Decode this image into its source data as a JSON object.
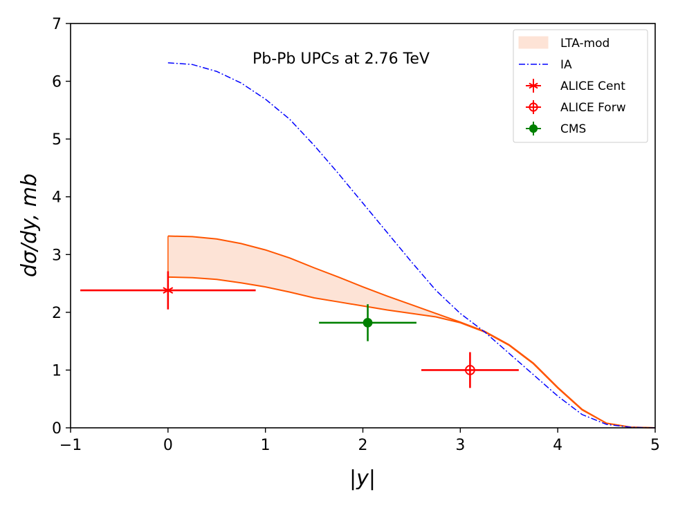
{
  "chart_data": {
    "type": "line",
    "title": "Pb-Pb UPCs at 2.76 TeV",
    "xlabel": "|y|",
    "ylabel": "dσ/dy, mb",
    "xlim": [
      -1,
      5
    ],
    "ylim": [
      0,
      7
    ],
    "xticks": [
      -1,
      0,
      1,
      2,
      3,
      4,
      5
    ],
    "yticks": [
      0,
      1,
      2,
      3,
      4,
      5,
      6,
      7
    ],
    "xtick_labels": [
      "−1",
      "0",
      "1",
      "2",
      "3",
      "4",
      "5"
    ],
    "ytick_labels": [
      "0",
      "1",
      "2",
      "3",
      "4",
      "5",
      "6",
      "7"
    ],
    "grid": false,
    "legend_position": "top-right",
    "band": {
      "name": "LTA-mod",
      "color": "#fde3d6",
      "edge_color": "#ff5500",
      "x": [
        0,
        0.25,
        0.5,
        0.75,
        1.0,
        1.25,
        1.5,
        1.75,
        2.0,
        2.25,
        2.5,
        2.75,
        3.0,
        3.25,
        3.5,
        3.75,
        4.0,
        4.25,
        4.5,
        4.75,
        5.0
      ],
      "upper": [
        3.32,
        3.31,
        3.27,
        3.19,
        3.08,
        2.94,
        2.77,
        2.61,
        2.44,
        2.28,
        2.13,
        1.98,
        1.83,
        1.67,
        1.44,
        1.12,
        0.7,
        0.32,
        0.08,
        0.01,
        0.0
      ],
      "lower": [
        2.61,
        2.6,
        2.57,
        2.51,
        2.44,
        2.35,
        2.25,
        2.18,
        2.11,
        2.04,
        1.98,
        1.92,
        1.82,
        1.66,
        1.43,
        1.11,
        0.69,
        0.31,
        0.08,
        0.01,
        0.0
      ]
    },
    "series": [
      {
        "name": "IA",
        "color": "#0000ff",
        "style": "dash-dot",
        "x": [
          0,
          0.25,
          0.5,
          0.75,
          1.0,
          1.25,
          1.5,
          1.75,
          2.0,
          2.25,
          2.5,
          2.75,
          3.0,
          3.25,
          3.5,
          3.75,
          4.0,
          4.25,
          4.5,
          4.75,
          5.0
        ],
        "y": [
          6.32,
          6.29,
          6.17,
          5.97,
          5.69,
          5.34,
          4.89,
          4.4,
          3.89,
          3.38,
          2.87,
          2.38,
          1.98,
          1.66,
          1.29,
          0.92,
          0.55,
          0.23,
          0.06,
          0.01,
          0.0
        ]
      }
    ],
    "points": [
      {
        "name": "ALICE Cent",
        "color": "#ff0000",
        "marker": "asterisk",
        "x": 0,
        "y": 2.38,
        "xerr": 0.9,
        "yerr": 0.33
      },
      {
        "name": "ALICE Forw",
        "color": "#ff0000",
        "marker": "open-circle",
        "x": 3.1,
        "y": 1.0,
        "xerr": 0.5,
        "yerr": 0.31
      },
      {
        "name": "CMS",
        "color": "#008000",
        "marker": "filled-circle",
        "x": 2.05,
        "y": 1.82,
        "xerr": 0.5,
        "yerr": 0.32
      }
    ]
  }
}
